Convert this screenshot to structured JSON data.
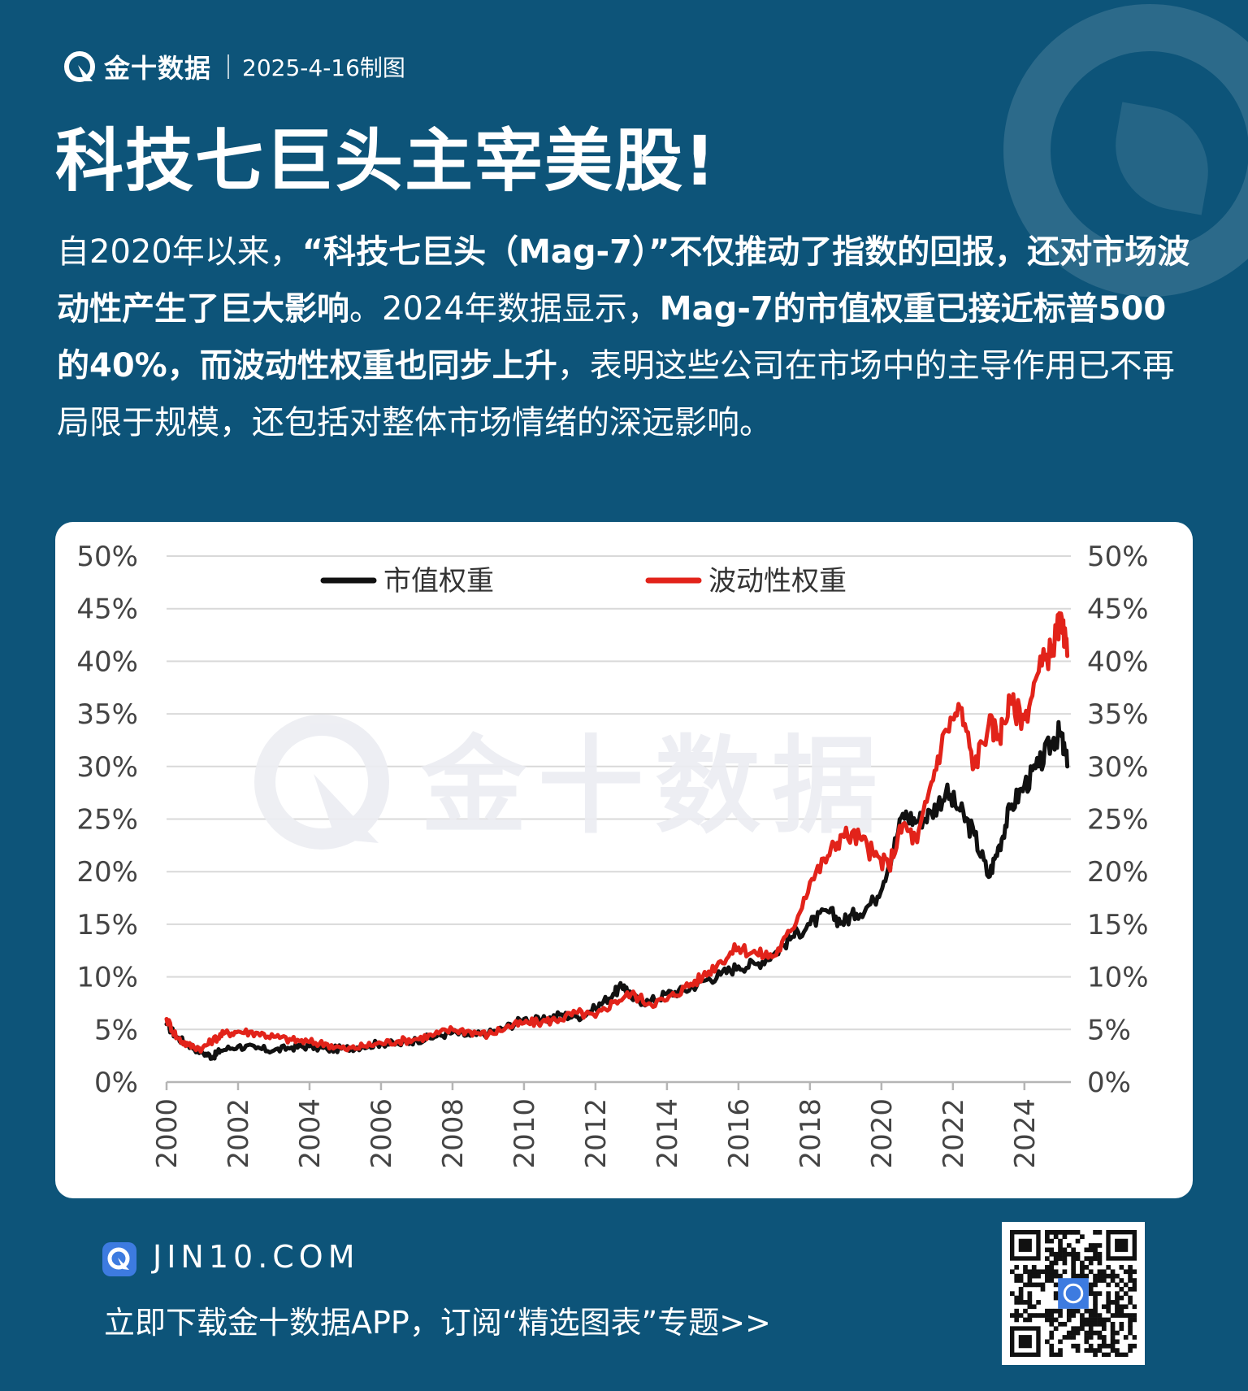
{
  "header": {
    "brand": "金十数据",
    "date": "2025-4-16制图"
  },
  "title": "科技七巨头主宰美股!",
  "body": {
    "p1": "自2020年以来，",
    "p2": "“科技七巨头（Mag-7）”不仅推动了指数的回报，还对市场波动性产生了巨大影响",
    "p3": "。2024年数据显示，",
    "p4": "Mag-7的市值权重已接近标普500的40%，而波动性权重也同步上升",
    "p5": "，表明这些公司在市场中的主导作用已不再局限于规模，还包括对整体市场情绪的深远影响。"
  },
  "chart_data": {
    "type": "line",
    "watermark": "金十数据",
    "y_ticks": [
      "0%",
      "5%",
      "10%",
      "15%",
      "20%",
      "25%",
      "30%",
      "35%",
      "40%",
      "45%",
      "50%"
    ],
    "x_ticks": [
      "2000",
      "2002",
      "2004",
      "2006",
      "2008",
      "2010",
      "2012",
      "2014",
      "2016",
      "2018",
      "2020",
      "2022",
      "2024"
    ],
    "xlim": [
      2000,
      2025.3
    ],
    "ylim": [
      0,
      50
    ],
    "grid": true,
    "legend_position": "top-center",
    "series": [
      {
        "name": "市值权重",
        "color": "#111111",
        "points": [
          [
            2000,
            5.5
          ],
          [
            2000.3,
            4.2
          ],
          [
            2000.6,
            3.6
          ],
          [
            2001,
            2.8
          ],
          [
            2001.3,
            2.4
          ],
          [
            2001.5,
            3.0
          ],
          [
            2002,
            3.4
          ],
          [
            2002.5,
            3.2
          ],
          [
            2003,
            3.0
          ],
          [
            2003.5,
            3.3
          ],
          [
            2004,
            3.4
          ],
          [
            2004.5,
            3.1
          ],
          [
            2005,
            3.2
          ],
          [
            2005.5,
            3.4
          ],
          [
            2006,
            3.7
          ],
          [
            2006.5,
            3.6
          ],
          [
            2007,
            4.0
          ],
          [
            2007.5,
            4.3
          ],
          [
            2008,
            4.7
          ],
          [
            2008.5,
            4.4
          ],
          [
            2009,
            4.6
          ],
          [
            2009.5,
            5.2
          ],
          [
            2010,
            6.0
          ],
          [
            2010.5,
            5.8
          ],
          [
            2011,
            6.4
          ],
          [
            2011.5,
            6.2
          ],
          [
            2012,
            7.0
          ],
          [
            2012.5,
            8.4
          ],
          [
            2012.8,
            9.2
          ],
          [
            2013,
            8.0
          ],
          [
            2013.5,
            7.6
          ],
          [
            2014,
            8.4
          ],
          [
            2014.5,
            8.7
          ],
          [
            2015,
            9.6
          ],
          [
            2015.5,
            10.2
          ],
          [
            2016,
            11.0
          ],
          [
            2016.5,
            11.2
          ],
          [
            2017,
            12.2
          ],
          [
            2017.5,
            13.8
          ],
          [
            2018,
            15.0
          ],
          [
            2018.5,
            16.2
          ],
          [
            2018.9,
            15.2
          ],
          [
            2019.3,
            16.0
          ],
          [
            2019.8,
            17.2
          ],
          [
            2020.2,
            20.5
          ],
          [
            2020.6,
            25.5
          ],
          [
            2021,
            24.8
          ],
          [
            2021.4,
            25.6
          ],
          [
            2021.8,
            27.5
          ],
          [
            2022.2,
            25.8
          ],
          [
            2022.6,
            23.5
          ],
          [
            2023,
            19.5
          ],
          [
            2023.3,
            22.5
          ],
          [
            2023.6,
            26.0
          ],
          [
            2024,
            28.2
          ],
          [
            2024.4,
            30.0
          ],
          [
            2024.8,
            32.5
          ],
          [
            2025,
            33.2
          ],
          [
            2025.2,
            30.0
          ]
        ]
      },
      {
        "name": "波动性权重",
        "color": "#e2231a",
        "points": [
          [
            2000,
            6.0
          ],
          [
            2000.3,
            4.2
          ],
          [
            2000.6,
            3.5
          ],
          [
            2001,
            3.2
          ],
          [
            2001.3,
            4.0
          ],
          [
            2001.6,
            4.6
          ],
          [
            2002,
            4.8
          ],
          [
            2002.5,
            4.7
          ],
          [
            2003,
            4.3
          ],
          [
            2003.5,
            4.0
          ],
          [
            2004,
            3.8
          ],
          [
            2004.5,
            3.6
          ],
          [
            2005,
            3.1
          ],
          [
            2005.5,
            3.4
          ],
          [
            2006,
            3.7
          ],
          [
            2006.5,
            3.9
          ],
          [
            2007,
            4.1
          ],
          [
            2007.5,
            4.5
          ],
          [
            2008,
            5.0
          ],
          [
            2008.5,
            4.8
          ],
          [
            2009,
            4.5
          ],
          [
            2009.5,
            5.2
          ],
          [
            2010,
            5.6
          ],
          [
            2010.5,
            5.7
          ],
          [
            2011,
            6.0
          ],
          [
            2011.5,
            6.6
          ],
          [
            2012,
            6.2
          ],
          [
            2012.5,
            7.6
          ],
          [
            2013,
            8.4
          ],
          [
            2013.5,
            7.5
          ],
          [
            2014,
            7.8
          ],
          [
            2014.5,
            9.0
          ],
          [
            2015,
            10.0
          ],
          [
            2015.5,
            11.5
          ],
          [
            2016,
            12.8
          ],
          [
            2016.5,
            12.2
          ],
          [
            2017,
            12.0
          ],
          [
            2017.5,
            14.5
          ],
          [
            2018,
            19.0
          ],
          [
            2018.5,
            21.5
          ],
          [
            2018.9,
            23.5
          ],
          [
            2019.4,
            23.2
          ],
          [
            2019.8,
            21.5
          ],
          [
            2020.2,
            20.5
          ],
          [
            2020.6,
            24.5
          ],
          [
            2021,
            22.8
          ],
          [
            2021.4,
            28.5
          ],
          [
            2021.8,
            33.5
          ],
          [
            2022.2,
            35.5
          ],
          [
            2022.6,
            30.0
          ],
          [
            2023,
            34.0
          ],
          [
            2023.3,
            33.0
          ],
          [
            2023.6,
            36.0
          ],
          [
            2024,
            34.5
          ],
          [
            2024.4,
            39.0
          ],
          [
            2024.8,
            41.5
          ],
          [
            2025,
            43.8
          ],
          [
            2025.2,
            40.5
          ]
        ]
      }
    ]
  },
  "footer": {
    "site": "JIN10.COM",
    "cta": "立即下载金十数据APP，订阅“精选图表”专题>>"
  }
}
